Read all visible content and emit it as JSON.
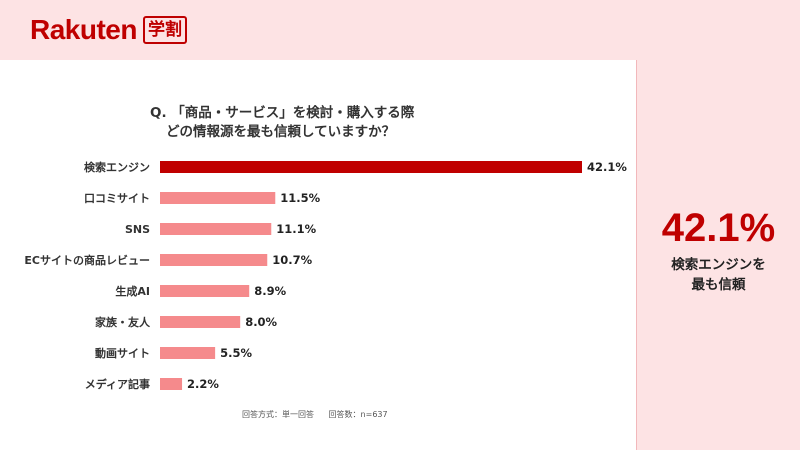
{
  "brand": {
    "name": "Rakuten",
    "badge": "学割"
  },
  "question": {
    "line1": "Q. 「商品・サービス」を検討・購入する際",
    "line2": "どの情報源を最も信頼していますか？"
  },
  "note": {
    "method": "回答方式：単一回答",
    "count": "回答数：n=637"
  },
  "highlight": {
    "value": "42.1%",
    "caption_line1": "検索エンジンを",
    "caption_line2": "最も信頼"
  },
  "colors": {
    "top_bar": "#c00000",
    "bar": "#f58a8c",
    "accent": "#bf0000"
  },
  "chart_data": {
    "type": "bar",
    "orientation": "horizontal",
    "categories": [
      "検索エンジン",
      "口コミサイト",
      "SNS",
      "ECサイトの商品レビュー",
      "生成AI",
      "家族・友人",
      "動画サイト",
      "メディア記事"
    ],
    "values": [
      42.1,
      11.5,
      11.1,
      10.7,
      8.9,
      8.0,
      5.5,
      2.2
    ],
    "value_labels": [
      "42.1%",
      "11.5%",
      "11.1%",
      "10.7%",
      "8.9%",
      "8.0%",
      "5.5%",
      "2.2%"
    ],
    "unit": "%",
    "title": "Q. 「商品・サービス」を検討・購入する際どの情報源を最も信頼していますか？",
    "xlabel": "",
    "ylabel": "",
    "xlim": [
      0,
      42.1
    ],
    "grid": false,
    "legend": "none"
  }
}
